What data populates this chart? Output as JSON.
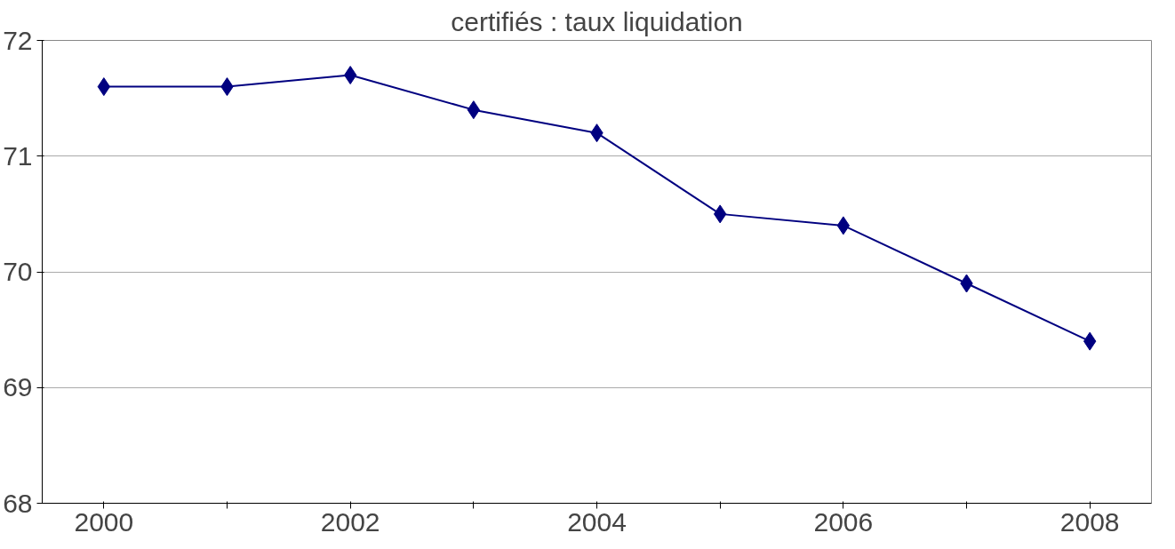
{
  "chart_data": {
    "type": "line",
    "title": "certifiés : taux liquidation",
    "categories": [
      "2000",
      null,
      "2002",
      null,
      "2004",
      null,
      "2006",
      null,
      "2008"
    ],
    "series": [
      {
        "color": "#000080",
        "values": [
          71.6,
          71.6,
          71.7,
          71.4,
          71.2,
          70.5,
          70.4,
          69.9,
          69.4
        ]
      }
    ],
    "ylim": [
      68,
      72
    ],
    "yticks": [
      68,
      69,
      70,
      71,
      72
    ],
    "grid": "y",
    "marker": "diamond",
    "line_style": "solid"
  }
}
